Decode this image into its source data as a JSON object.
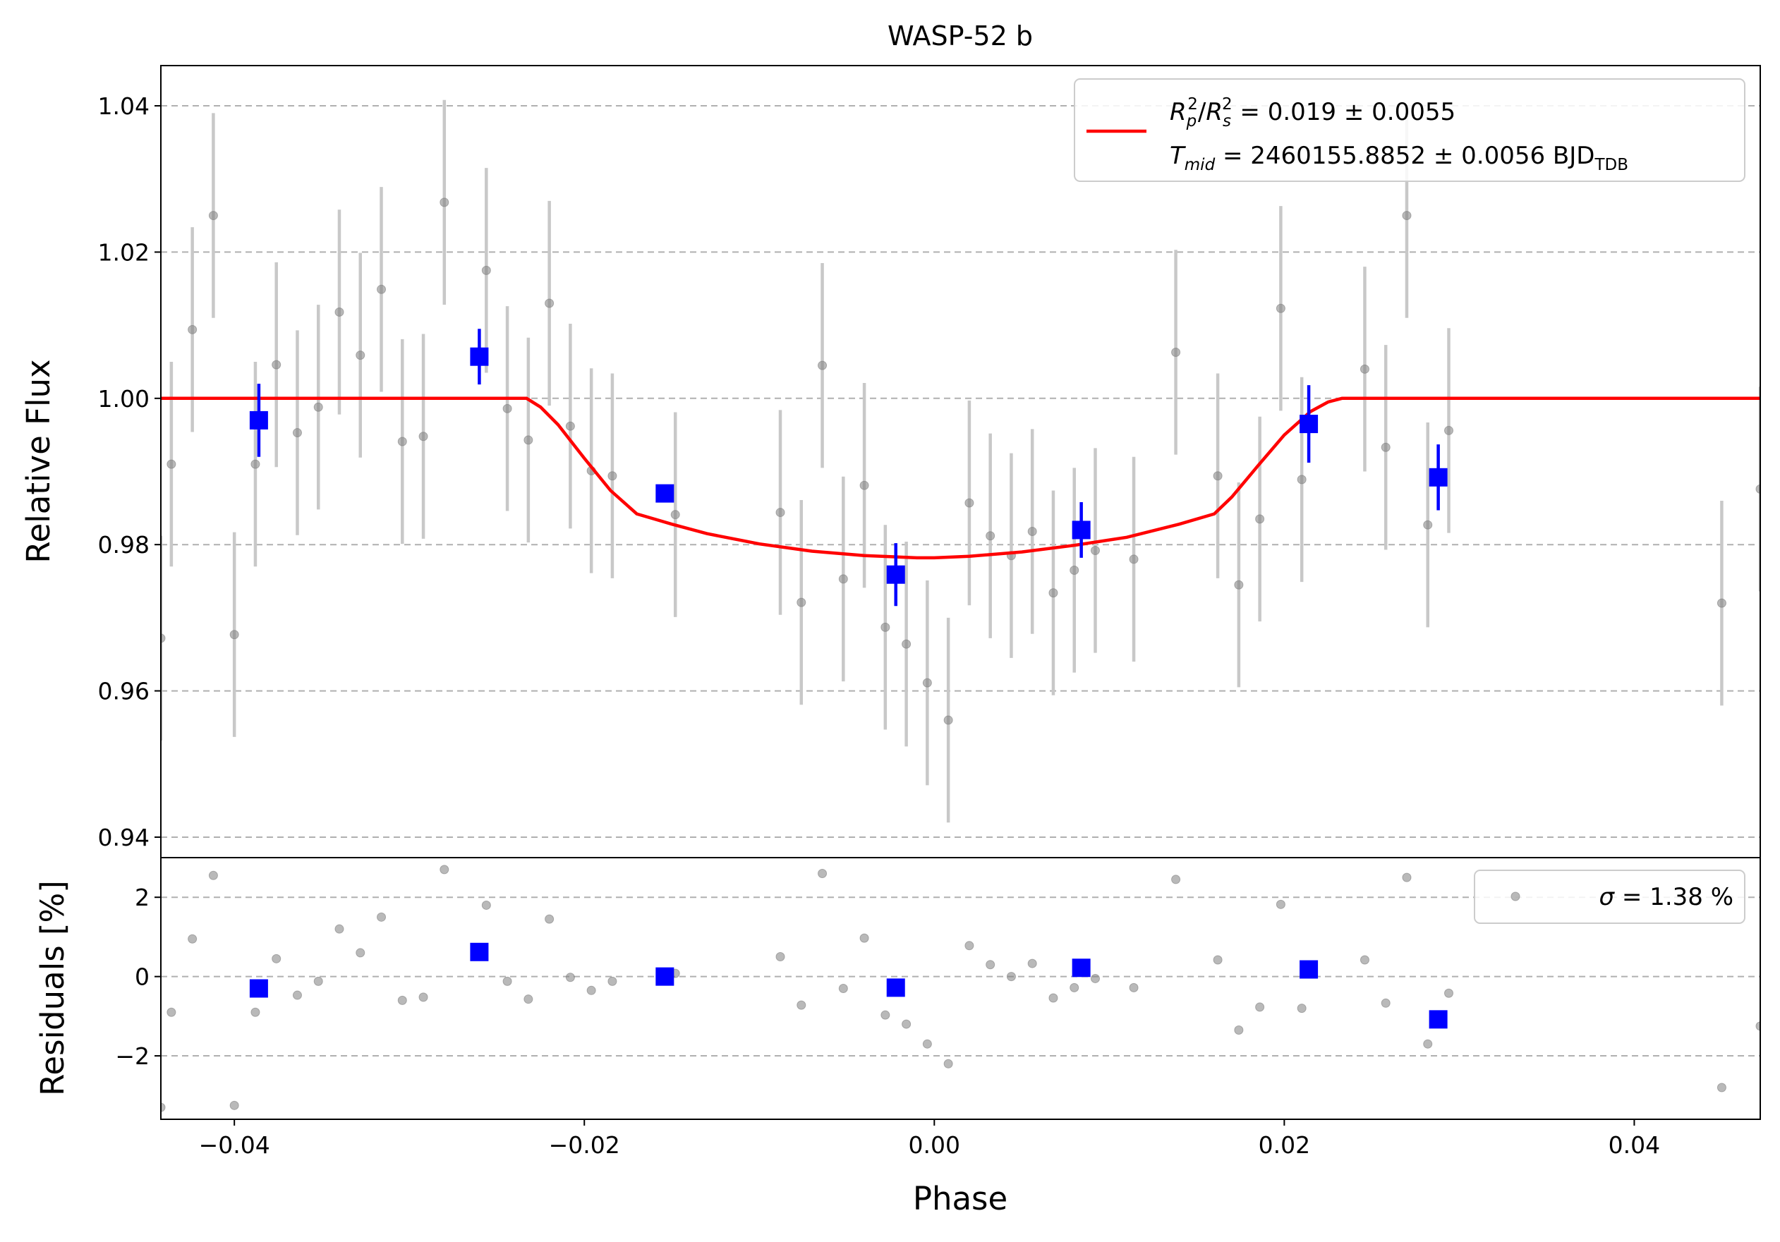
{
  "chart_data": {
    "type": "scatter",
    "title": "WASP-52 b",
    "xlabel": "Phase",
    "xlim": [
      -0.0442,
      0.0472
    ],
    "xticks": [
      -0.04,
      -0.02,
      0.0,
      0.02,
      0.04
    ],
    "xtick_labels": [
      "−0.04",
      "−0.02",
      "0.00",
      "0.02",
      "0.04"
    ],
    "grid": "horizontal dashed",
    "colors": {
      "raw": "#808080",
      "errorbar": "#c8c8c8",
      "binned": "#0000ff",
      "model": "#ff0000"
    },
    "flux_panel": {
      "ylabel": "Relative Flux",
      "ylim": [
        0.9372,
        1.0455
      ],
      "yticks": [
        0.94,
        0.96,
        0.98,
        1.0,
        1.02,
        1.04
      ],
      "ytick_labels": [
        "0.94",
        "0.96",
        "0.98",
        "1.00",
        "1.02",
        "1.04"
      ],
      "legend_position": "top-right",
      "legend": {
        "symbol_rp": "R",
        "sub_p": "p",
        "sup_2a": "2",
        "slash": "/",
        "symbol_rs": "R",
        "sub_s": "s",
        "sup_2b": "2",
        "rp_rs_value": " = 0.019 ± 0.0055",
        "symbol_t": "T",
        "sub_mid": "mid",
        "tmid_value": " = 2460155.8852 ± 0.0056 BJD",
        "sub_tdb": "TDB"
      },
      "raw_points": [
        {
          "x": -0.0442,
          "y": 0.9672,
          "err": 0.014
        },
        {
          "x": -0.0436,
          "y": 0.991,
          "err": 0.014
        },
        {
          "x": -0.0424,
          "y": 1.0094,
          "err": 0.014
        },
        {
          "x": -0.0412,
          "y": 1.025,
          "err": 0.014
        },
        {
          "x": -0.04,
          "y": 0.9677,
          "err": 0.014
        },
        {
          "x": -0.0388,
          "y": 0.991,
          "err": 0.014
        },
        {
          "x": -0.0376,
          "y": 1.0046,
          "err": 0.014
        },
        {
          "x": -0.0364,
          "y": 0.9953,
          "err": 0.014
        },
        {
          "x": -0.0352,
          "y": 0.9988,
          "err": 0.014
        },
        {
          "x": -0.034,
          "y": 1.0118,
          "err": 0.014
        },
        {
          "x": -0.0328,
          "y": 1.0059,
          "err": 0.014
        },
        {
          "x": -0.0316,
          "y": 1.0149,
          "err": 0.014
        },
        {
          "x": -0.0304,
          "y": 0.9941,
          "err": 0.014
        },
        {
          "x": -0.0292,
          "y": 0.9948,
          "err": 0.014
        },
        {
          "x": -0.028,
          "y": 1.0268,
          "err": 0.014
        },
        {
          "x": -0.0256,
          "y": 1.0175,
          "err": 0.014
        },
        {
          "x": -0.0244,
          "y": 0.9986,
          "err": 0.014
        },
        {
          "x": -0.0232,
          "y": 0.9943,
          "err": 0.014
        },
        {
          "x": -0.022,
          "y": 1.013,
          "err": 0.014
        },
        {
          "x": -0.0208,
          "y": 0.9962,
          "err": 0.014
        },
        {
          "x": -0.0196,
          "y": 0.9901,
          "err": 0.014
        },
        {
          "x": -0.0184,
          "y": 0.9894,
          "err": 0.014
        },
        {
          "x": -0.0148,
          "y": 0.9841,
          "err": 0.014
        },
        {
          "x": -0.0088,
          "y": 0.9844,
          "err": 0.014
        },
        {
          "x": -0.0076,
          "y": 0.9721,
          "err": 0.014
        },
        {
          "x": -0.0064,
          "y": 1.0045,
          "err": 0.014
        },
        {
          "x": -0.0052,
          "y": 0.9753,
          "err": 0.014
        },
        {
          "x": -0.004,
          "y": 0.9881,
          "err": 0.014
        },
        {
          "x": -0.0028,
          "y": 0.9687,
          "err": 0.014
        },
        {
          "x": -0.0016,
          "y": 0.9664,
          "err": 0.014
        },
        {
          "x": -0.0004,
          "y": 0.9611,
          "err": 0.014
        },
        {
          "x": 0.0008,
          "y": 0.956,
          "err": 0.014
        },
        {
          "x": 0.002,
          "y": 0.9857,
          "err": 0.014
        },
        {
          "x": 0.0032,
          "y": 0.9812,
          "err": 0.014
        },
        {
          "x": 0.0044,
          "y": 0.9785,
          "err": 0.014
        },
        {
          "x": 0.0056,
          "y": 0.9818,
          "err": 0.014
        },
        {
          "x": 0.0068,
          "y": 0.9734,
          "err": 0.014
        },
        {
          "x": 0.008,
          "y": 0.9765,
          "err": 0.014
        },
        {
          "x": 0.0092,
          "y": 0.9792,
          "err": 0.014
        },
        {
          "x": 0.0114,
          "y": 0.978,
          "err": 0.014
        },
        {
          "x": 0.0138,
          "y": 1.0063,
          "err": 0.014
        },
        {
          "x": 0.0162,
          "y": 0.9894,
          "err": 0.014
        },
        {
          "x": 0.0174,
          "y": 0.9745,
          "err": 0.014
        },
        {
          "x": 0.0186,
          "y": 0.9835,
          "err": 0.014
        },
        {
          "x": 0.0198,
          "y": 1.0123,
          "err": 0.014
        },
        {
          "x": 0.021,
          "y": 0.9889,
          "err": 0.014
        },
        {
          "x": 0.0246,
          "y": 1.004,
          "err": 0.014
        },
        {
          "x": 0.0258,
          "y": 0.9933,
          "err": 0.014
        },
        {
          "x": 0.027,
          "y": 1.025,
          "err": 0.014
        },
        {
          "x": 0.0282,
          "y": 0.9827,
          "err": 0.014
        },
        {
          "x": 0.0294,
          "y": 0.9956,
          "err": 0.014
        },
        {
          "x": 0.045,
          "y": 0.972,
          "err": 0.014
        },
        {
          "x": 0.0472,
          "y": 0.9876,
          "err": 0.014
        }
      ],
      "binned_points": [
        {
          "x": -0.0386,
          "y": 0.997,
          "err": 0.005
        },
        {
          "x": -0.026,
          "y": 1.0057,
          "err": 0.0038
        },
        {
          "x": -0.0154,
          "y": 0.987,
          "err": 0.001
        },
        {
          "x": -0.0022,
          "y": 0.9759,
          "err": 0.0043
        },
        {
          "x": 0.0084,
          "y": 0.982,
          "err": 0.0038
        },
        {
          "x": 0.0214,
          "y": 0.9965,
          "err": 0.0053
        },
        {
          "x": 0.0288,
          "y": 0.9892,
          "err": 0.0045
        }
      ],
      "model_curve": {
        "x": [
          -0.0442,
          -0.0233,
          -0.0225,
          -0.0215,
          -0.02,
          -0.0185,
          -0.017,
          -0.016,
          -0.015,
          -0.013,
          -0.01,
          -0.007,
          -0.004,
          -0.001,
          0.0,
          0.002,
          0.005,
          0.008,
          0.011,
          0.014,
          0.016,
          0.017,
          0.0185,
          0.02,
          0.0215,
          0.0225,
          0.0233,
          0.0472
        ],
        "y": [
          1.0,
          1.0,
          0.9988,
          0.9964,
          0.9918,
          0.9874,
          0.9842,
          0.9835,
          0.9828,
          0.9815,
          0.9801,
          0.9791,
          0.9785,
          0.9782,
          0.9782,
          0.9784,
          0.979,
          0.9799,
          0.981,
          0.9828,
          0.9842,
          0.9865,
          0.9908,
          0.995,
          0.9982,
          0.9995,
          1.0,
          1.0
        ]
      }
    },
    "residual_panel": {
      "ylabel": "Residuals [%]",
      "ylim": [
        -3.6,
        3.0
      ],
      "yticks": [
        -2,
        0,
        2
      ],
      "ytick_labels": [
        "−2",
        "0",
        "2"
      ],
      "legend_position": "top-right",
      "legend": {
        "symbol_sigma": "σ",
        "sigma_value": " = 1.38 %"
      },
      "raw_residuals": [
        {
          "x": -0.0442,
          "y": -3.3
        },
        {
          "x": -0.0436,
          "y": -0.9
        },
        {
          "x": -0.0424,
          "y": 0.95
        },
        {
          "x": -0.0412,
          "y": 2.55
        },
        {
          "x": -0.04,
          "y": -3.25
        },
        {
          "x": -0.0388,
          "y": -0.9
        },
        {
          "x": -0.0376,
          "y": 0.45
        },
        {
          "x": -0.0364,
          "y": -0.47
        },
        {
          "x": -0.0352,
          "y": -0.12
        },
        {
          "x": -0.034,
          "y": 1.2
        },
        {
          "x": -0.0328,
          "y": 0.6
        },
        {
          "x": -0.0316,
          "y": 1.5
        },
        {
          "x": -0.0304,
          "y": -0.6
        },
        {
          "x": -0.0292,
          "y": -0.52
        },
        {
          "x": -0.028,
          "y": 2.7
        },
        {
          "x": -0.0256,
          "y": 1.8
        },
        {
          "x": -0.0244,
          "y": -0.12
        },
        {
          "x": -0.0232,
          "y": -0.57
        },
        {
          "x": -0.022,
          "y": 1.45
        },
        {
          "x": -0.0208,
          "y": -0.02
        },
        {
          "x": -0.0196,
          "y": -0.35
        },
        {
          "x": -0.0184,
          "y": -0.12
        },
        {
          "x": -0.0148,
          "y": 0.08
        },
        {
          "x": -0.0088,
          "y": 0.5
        },
        {
          "x": -0.0076,
          "y": -0.72
        },
        {
          "x": -0.0064,
          "y": 2.6
        },
        {
          "x": -0.0052,
          "y": -0.3
        },
        {
          "x": -0.004,
          "y": 0.97
        },
        {
          "x": -0.0028,
          "y": -0.97
        },
        {
          "x": -0.0016,
          "y": -1.2
        },
        {
          "x": -0.0004,
          "y": -1.7
        },
        {
          "x": 0.0008,
          "y": -2.2
        },
        {
          "x": 0.002,
          "y": 0.78
        },
        {
          "x": 0.0032,
          "y": 0.3
        },
        {
          "x": 0.0044,
          "y": 0.0
        },
        {
          "x": 0.0056,
          "y": 0.33
        },
        {
          "x": 0.0068,
          "y": -0.54
        },
        {
          "x": 0.008,
          "y": -0.28
        },
        {
          "x": 0.0092,
          "y": -0.05
        },
        {
          "x": 0.0114,
          "y": -0.28
        },
        {
          "x": 0.0138,
          "y": 2.45
        },
        {
          "x": 0.0162,
          "y": 0.42
        },
        {
          "x": 0.0174,
          "y": -1.35
        },
        {
          "x": 0.0186,
          "y": -0.77
        },
        {
          "x": 0.0198,
          "y": 1.82
        },
        {
          "x": 0.021,
          "y": -0.8
        },
        {
          "x": 0.0246,
          "y": 0.42
        },
        {
          "x": 0.0258,
          "y": -0.67
        },
        {
          "x": 0.027,
          "y": 2.5
        },
        {
          "x": 0.0282,
          "y": -1.7
        },
        {
          "x": 0.0294,
          "y": -0.42
        },
        {
          "x": 0.045,
          "y": -2.8
        },
        {
          "x": 0.0472,
          "y": -1.25
        }
      ],
      "binned_residuals": [
        {
          "x": -0.0386,
          "y": -0.3
        },
        {
          "x": -0.026,
          "y": 0.62
        },
        {
          "x": -0.0154,
          "y": 0.0
        },
        {
          "x": -0.0022,
          "y": -0.28
        },
        {
          "x": 0.0084,
          "y": 0.22
        },
        {
          "x": 0.0214,
          "y": 0.18
        },
        {
          "x": 0.0288,
          "y": -1.08
        }
      ]
    }
  }
}
